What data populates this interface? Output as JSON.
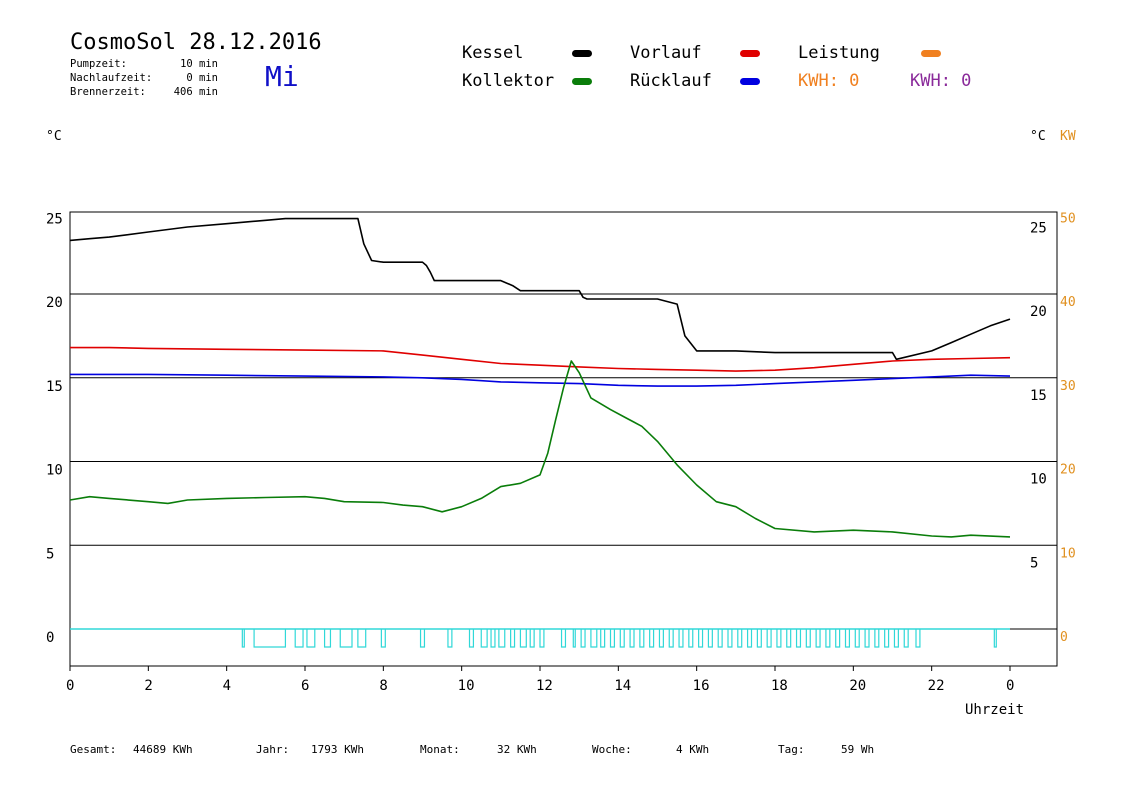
{
  "header": {
    "title": "CosmoSol 28.12.2016",
    "weekday": "Mi",
    "pumpzeit_label": "Pumpzeit:",
    "pumpzeit_value": "10 min",
    "nachlaufzeit_label": "Nachlaufzeit:",
    "nachlaufzeit_value": "0 min",
    "brennerzeit_label": "Brennerzeit:",
    "brennerzeit_value": "406 min"
  },
  "legend": {
    "kessel": "Kessel",
    "kollektor": "Kollektor",
    "vorlauf": "Vorlauf",
    "ruecklauf": "Rücklauf",
    "leistung": "Leistung",
    "kwh_orange": "KWH: 0",
    "kwh_purple": "KWH: 0"
  },
  "colors": {
    "kessel": "#000000",
    "kollektor": "#0a7d0a",
    "vorlauf": "#e00000",
    "ruecklauf": "#0000e0",
    "leistung": "#f08020",
    "pump": "#30d8d8",
    "kwh_purple": "#8a2a9a"
  },
  "axis_units": {
    "left": "°C",
    "right_temp": "°C",
    "right_power": "KW"
  },
  "footer": {
    "gesamt_label": "Gesamt:",
    "gesamt_value": "44689 KWh",
    "jahr_label": "Jahr:",
    "jahr_value": "1793 KWh",
    "monat_label": "Monat:",
    "monat_value": "32 KWh",
    "woche_label": "Woche:",
    "woche_value": "4 KWh",
    "tag_label": "Tag:",
    "tag_value": "59 Wh"
  },
  "chart_data": {
    "type": "line",
    "xlabel": "Uhrzeit",
    "x_ticks": [
      "0",
      "2",
      "4",
      "6",
      "8",
      "10",
      "12",
      "14",
      "16",
      "18",
      "20",
      "22",
      "0"
    ],
    "xlim": [
      0,
      24
    ],
    "ylim": [
      -2,
      25
    ],
    "y_ticks_left": [
      0,
      5,
      10,
      15,
      20,
      25
    ],
    "y_ticks_right_temp": [
      5,
      10,
      15,
      20,
      25
    ],
    "y_ticks_right_power": [
      0,
      10,
      20,
      30,
      40,
      50
    ],
    "grid": "horizontal",
    "series": [
      {
        "name": "Kessel",
        "x": [
          0,
          0.5,
          1,
          2,
          3,
          4,
          5,
          5.5,
          6,
          7,
          7.2,
          7.35,
          7.5,
          7.7,
          8,
          9,
          9.1,
          9.2,
          9.3,
          10,
          11,
          11.3,
          11.5,
          12,
          13,
          13.1,
          13.2,
          14,
          15,
          15.5,
          15.7,
          16,
          17,
          18,
          19,
          20,
          21,
          21.1,
          22,
          22.5,
          23,
          23.5,
          24
        ],
        "y": [
          23.2,
          23.3,
          23.4,
          23.7,
          24.0,
          24.2,
          24.4,
          24.5,
          24.5,
          24.5,
          24.5,
          24.5,
          23.0,
          22.0,
          21.9,
          21.9,
          21.7,
          21.3,
          20.8,
          20.8,
          20.8,
          20.5,
          20.2,
          20.2,
          20.2,
          19.8,
          19.7,
          19.7,
          19.7,
          19.4,
          17.5,
          16.6,
          16.6,
          16.5,
          16.5,
          16.5,
          16.5,
          16.1,
          16.6,
          17.1,
          17.6,
          18.1,
          18.5
        ]
      },
      {
        "name": "Vorlauf",
        "x": [
          0,
          1,
          2,
          4,
          6,
          8,
          9,
          10,
          11,
          12,
          13,
          14,
          15,
          16,
          17,
          18,
          19,
          20,
          21,
          22,
          23,
          24
        ],
        "y": [
          16.8,
          16.8,
          16.75,
          16.7,
          16.65,
          16.6,
          16.35,
          16.1,
          15.85,
          15.75,
          15.65,
          15.55,
          15.5,
          15.45,
          15.4,
          15.45,
          15.6,
          15.8,
          16.0,
          16.1,
          16.15,
          16.2
        ]
      },
      {
        "name": "Rücklauf",
        "x": [
          0,
          2,
          4,
          6,
          8,
          9,
          10,
          11,
          12,
          13,
          14,
          15,
          16,
          17,
          18,
          19,
          20,
          21,
          22,
          23,
          24
        ],
        "y": [
          15.2,
          15.2,
          15.15,
          15.1,
          15.05,
          15.0,
          14.9,
          14.75,
          14.7,
          14.65,
          14.55,
          14.5,
          14.5,
          14.55,
          14.65,
          14.75,
          14.85,
          14.95,
          15.05,
          15.15,
          15.1
        ]
      },
      {
        "name": "Kollektor",
        "x": [
          0,
          0.5,
          1,
          2,
          2.5,
          3,
          4,
          5,
          6,
          6.5,
          7,
          8,
          8.5,
          9,
          9.5,
          10,
          10.5,
          11,
          11.5,
          12,
          12.2,
          12.4,
          12.6,
          12.8,
          13,
          13.3,
          13.8,
          14.2,
          14.6,
          15,
          15.5,
          16,
          16.5,
          17,
          17.5,
          18,
          19,
          20,
          21,
          22,
          22.5,
          23,
          24
        ],
        "y": [
          7.7,
          7.9,
          7.8,
          7.6,
          7.5,
          7.7,
          7.8,
          7.85,
          7.9,
          7.8,
          7.6,
          7.55,
          7.4,
          7.3,
          7.0,
          7.3,
          7.8,
          8.5,
          8.7,
          9.2,
          10.5,
          12.5,
          14.4,
          16.0,
          15.3,
          13.8,
          13.1,
          12.6,
          12.1,
          11.2,
          9.8,
          8.6,
          7.6,
          7.3,
          6.6,
          6.0,
          5.8,
          5.9,
          5.8,
          5.55,
          5.5,
          5.6,
          5.5
        ]
      },
      {
        "name": "Leistung",
        "x": [
          0,
          24
        ],
        "y": [
          0,
          0
        ]
      }
    ],
    "pump_on_intervals": [
      [
        4.4,
        4.45
      ],
      [
        4.7,
        5.5
      ],
      [
        5.75,
        5.95
      ],
      [
        6.05,
        6.25
      ],
      [
        6.5,
        6.65
      ],
      [
        6.9,
        7.2
      ],
      [
        7.35,
        7.55
      ],
      [
        7.95,
        8.05
      ],
      [
        8.95,
        9.05
      ],
      [
        9.65,
        9.75
      ],
      [
        10.2,
        10.3
      ],
      [
        10.5,
        10.65
      ],
      [
        10.75,
        10.85
      ],
      [
        10.95,
        11.1
      ],
      [
        11.25,
        11.35
      ],
      [
        11.5,
        11.65
      ],
      [
        11.75,
        11.85
      ],
      [
        12.0,
        12.1
      ],
      [
        12.55,
        12.65
      ],
      [
        12.85,
        12.9
      ],
      [
        13.05,
        13.15
      ],
      [
        13.3,
        13.45
      ],
      [
        13.55,
        13.65
      ],
      [
        13.8,
        13.9
      ],
      [
        14.05,
        14.15
      ],
      [
        14.3,
        14.4
      ],
      [
        14.55,
        14.65
      ],
      [
        14.8,
        14.9
      ],
      [
        15.05,
        15.15
      ],
      [
        15.3,
        15.4
      ],
      [
        15.55,
        15.65
      ],
      [
        15.8,
        15.9
      ],
      [
        16.05,
        16.15
      ],
      [
        16.3,
        16.4
      ],
      [
        16.55,
        16.65
      ],
      [
        16.8,
        16.9
      ],
      [
        17.05,
        17.15
      ],
      [
        17.3,
        17.4
      ],
      [
        17.55,
        17.65
      ],
      [
        17.8,
        17.9
      ],
      [
        18.05,
        18.15
      ],
      [
        18.3,
        18.4
      ],
      [
        18.55,
        18.65
      ],
      [
        18.8,
        18.9
      ],
      [
        19.05,
        19.15
      ],
      [
        19.3,
        19.4
      ],
      [
        19.55,
        19.65
      ],
      [
        19.8,
        19.9
      ],
      [
        20.05,
        20.15
      ],
      [
        20.3,
        20.4
      ],
      [
        20.55,
        20.65
      ],
      [
        20.8,
        20.9
      ],
      [
        21.05,
        21.15
      ],
      [
        21.3,
        21.4
      ],
      [
        21.6,
        21.7
      ],
      [
        23.6,
        23.65
      ]
    ]
  }
}
